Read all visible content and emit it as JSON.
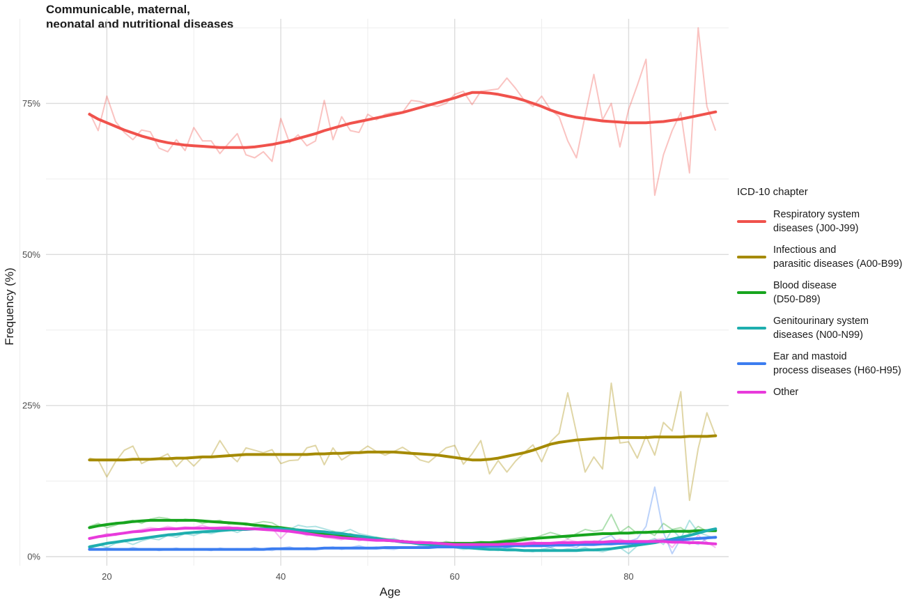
{
  "chart_data": {
    "type": "line",
    "title_lines": [
      "Communicable, maternal,",
      "neonatal and nutritional diseases"
    ],
    "xlabel": "Age",
    "ylabel": "Frequency (%)",
    "xlim": [
      13,
      91.5
    ],
    "ylim": [
      -1.5,
      89
    ],
    "x_ticks": [
      20,
      40,
      60,
      80
    ],
    "y_ticks": [
      0,
      25,
      50,
      75
    ],
    "y_tick_labels": [
      "0%",
      "25%",
      "50%",
      "75%"
    ],
    "grid": true,
    "legend_position": "right",
    "legend_title": "ICD-10 chapter",
    "x": [
      18,
      19,
      20,
      21,
      22,
      23,
      24,
      25,
      26,
      27,
      28,
      29,
      30,
      31,
      32,
      33,
      34,
      35,
      36,
      37,
      38,
      39,
      40,
      41,
      42,
      43,
      44,
      45,
      46,
      47,
      48,
      49,
      50,
      51,
      52,
      53,
      54,
      55,
      56,
      57,
      58,
      59,
      60,
      61,
      62,
      63,
      64,
      65,
      66,
      67,
      68,
      69,
      70,
      71,
      72,
      73,
      74,
      75,
      76,
      77,
      78,
      79,
      80,
      81,
      82,
      83,
      84,
      85,
      86,
      87,
      88,
      89,
      90
    ],
    "series": [
      {
        "name": "Respiratory system diseases (J00-J99)",
        "legend_lines": [
          "Respiratory system",
          "diseases (J00-J99)"
        ],
        "color": "#F0524C",
        "raw": [
          73.5,
          70.5,
          76.2,
          72.0,
          70.2,
          69.0,
          70.6,
          70.3,
          67.6,
          67.0,
          69.0,
          67.2,
          71.0,
          68.8,
          68.8,
          66.7,
          68.4,
          70.0,
          66.5,
          66.0,
          67.0,
          65.4,
          72.5,
          68.5,
          69.8,
          68.0,
          68.8,
          75.5,
          69.0,
          72.8,
          70.5,
          70.2,
          73.2,
          72.3,
          73.2,
          73.5,
          73.5,
          75.5,
          75.3,
          74.8,
          74.5,
          75.0,
          76.5,
          77.0,
          74.8,
          77.0,
          77.2,
          77.4,
          79.2,
          77.5,
          75.5,
          74.5,
          76.2,
          74.0,
          72.8,
          68.8,
          66.0,
          73.0,
          79.8,
          72.3,
          75.0,
          67.8,
          74.0,
          78.0,
          82.3,
          59.8,
          66.5,
          70.5,
          73.5,
          63.5,
          87.5,
          74.5,
          70.5
        ],
        "smooth": [
          73.2,
          72.4,
          71.8,
          71.2,
          70.6,
          70.1,
          69.6,
          69.2,
          68.8,
          68.5,
          68.3,
          68.1,
          68.0,
          67.9,
          67.8,
          67.7,
          67.7,
          67.7,
          67.7,
          67.8,
          68.0,
          68.2,
          68.5,
          68.8,
          69.2,
          69.6,
          70.0,
          70.5,
          70.9,
          71.3,
          71.7,
          72.0,
          72.3,
          72.6,
          72.9,
          73.2,
          73.5,
          73.9,
          74.3,
          74.7,
          75.1,
          75.5,
          75.9,
          76.4,
          76.8,
          76.8,
          76.7,
          76.5,
          76.2,
          75.9,
          75.5,
          75.0,
          74.5,
          73.9,
          73.4,
          73.0,
          72.7,
          72.5,
          72.3,
          72.1,
          72.0,
          71.9,
          71.8,
          71.8,
          71.8,
          71.9,
          72.0,
          72.2,
          72.4,
          72.7,
          73.0,
          73.3,
          73.6
        ]
      },
      {
        "name": "Infectious and parasitic diseases (A00-B99)",
        "legend_lines": [
          "Infectious and",
          "parasitic diseases (A00-B99)"
        ],
        "color": "#A58A00",
        "raw": [
          16.3,
          16.0,
          13.2,
          15.7,
          17.6,
          18.3,
          15.4,
          16.1,
          16.3,
          17.0,
          14.9,
          16.4,
          15.0,
          16.5,
          16.6,
          19.2,
          17.0,
          15.7,
          18.0,
          17.6,
          17.2,
          17.7,
          15.4,
          15.9,
          16.0,
          18.0,
          18.4,
          15.2,
          18.0,
          16.0,
          16.9,
          17.3,
          18.3,
          17.4,
          16.8,
          17.4,
          18.1,
          17.2,
          16.0,
          15.6,
          16.8,
          18.0,
          18.4,
          15.3,
          17.0,
          19.2,
          13.7,
          15.9,
          14.0,
          15.8,
          17.2,
          18.5,
          15.7,
          19.0,
          20.4,
          27.1,
          20.5,
          14.0,
          16.5,
          14.5,
          28.7,
          18.8,
          19.0,
          16.3,
          20.0,
          16.8,
          22.2,
          20.8,
          27.3,
          9.3,
          17.9,
          23.8,
          20.0
        ],
        "smooth": [
          16.0,
          16.0,
          16.0,
          16.0,
          16.0,
          16.1,
          16.1,
          16.1,
          16.2,
          16.2,
          16.3,
          16.3,
          16.4,
          16.5,
          16.5,
          16.6,
          16.7,
          16.8,
          16.9,
          16.9,
          16.9,
          16.9,
          16.9,
          16.9,
          16.9,
          16.9,
          17.0,
          17.0,
          17.1,
          17.1,
          17.2,
          17.2,
          17.3,
          17.3,
          17.3,
          17.3,
          17.2,
          17.1,
          17.0,
          16.9,
          16.8,
          16.6,
          16.4,
          16.2,
          16.0,
          16.0,
          16.1,
          16.3,
          16.6,
          16.9,
          17.2,
          17.6,
          18.1,
          18.6,
          18.9,
          19.1,
          19.3,
          19.4,
          19.5,
          19.6,
          19.6,
          19.7,
          19.7,
          19.7,
          19.7,
          19.8,
          19.8,
          19.8,
          19.8,
          19.9,
          19.9,
          19.9,
          20.0
        ]
      },
      {
        "name": "Blood disease (D50-D89)",
        "legend_lines": [
          "Blood disease",
          "(D50-D89)"
        ],
        "color": "#17A51E",
        "raw": [
          5.0,
          5.5,
          4.8,
          5.2,
          5.8,
          6.0,
          5.5,
          6.2,
          6.5,
          6.3,
          5.8,
          6.2,
          6.0,
          5.5,
          5.8,
          6.0,
          5.4,
          5.6,
          5.2,
          5.5,
          5.8,
          5.6,
          4.8,
          4.2,
          4.5,
          4.3,
          4.0,
          3.8,
          4.2,
          3.5,
          3.8,
          3.3,
          3.0,
          3.2,
          3.0,
          2.8,
          2.6,
          2.5,
          2.3,
          2.2,
          2.0,
          2.5,
          2.2,
          2.0,
          2.3,
          2.5,
          2.4,
          2.6,
          2.8,
          3.0,
          3.2,
          3.0,
          3.5,
          4.0,
          3.6,
          3.0,
          3.8,
          4.5,
          4.2,
          4.4,
          7.0,
          4.0,
          5.0,
          3.8,
          4.2,
          3.5,
          5.5,
          4.5,
          4.8,
          3.8,
          5.0,
          4.2,
          4.2
        ],
        "smooth": [
          4.8,
          5.1,
          5.3,
          5.5,
          5.6,
          5.8,
          5.9,
          6.0,
          6.0,
          6.0,
          6.0,
          6.0,
          6.0,
          5.9,
          5.8,
          5.7,
          5.6,
          5.5,
          5.4,
          5.2,
          5.1,
          4.9,
          4.8,
          4.6,
          4.4,
          4.2,
          4.0,
          3.8,
          3.6,
          3.4,
          3.2,
          3.1,
          2.9,
          2.8,
          2.7,
          2.6,
          2.5,
          2.4,
          2.3,
          2.3,
          2.2,
          2.2,
          2.2,
          2.2,
          2.2,
          2.3,
          2.3,
          2.4,
          2.5,
          2.6,
          2.8,
          3.0,
          3.1,
          3.2,
          3.3,
          3.4,
          3.5,
          3.6,
          3.7,
          3.8,
          3.8,
          3.9,
          3.9,
          4.0,
          4.0,
          4.1,
          4.1,
          4.2,
          4.2,
          4.2,
          4.3,
          4.3,
          4.3
        ]
      },
      {
        "name": "Genitourinary system diseases (N00-N99)",
        "legend_lines": [
          "Genitourinary system",
          "diseases (N00-N99)"
        ],
        "color": "#1EAEAE",
        "raw": [
          1.8,
          2.0,
          1.5,
          2.2,
          2.5,
          2.0,
          2.6,
          3.0,
          2.8,
          3.5,
          3.2,
          3.8,
          3.5,
          4.0,
          3.8,
          4.2,
          4.5,
          4.0,
          4.6,
          4.8,
          4.5,
          5.0,
          4.8,
          4.5,
          5.2,
          4.9,
          5.0,
          4.6,
          4.2,
          4.0,
          4.5,
          3.8,
          3.5,
          3.2,
          2.8,
          3.0,
          2.5,
          2.2,
          2.0,
          1.8,
          1.6,
          2.0,
          1.5,
          1.2,
          1.4,
          1.6,
          1.2,
          1.0,
          1.5,
          1.2,
          1.0,
          0.8,
          1.2,
          1.5,
          1.0,
          1.3,
          1.2,
          1.5,
          1.0,
          0.8,
          1.2,
          1.5,
          0.5,
          1.8,
          2.5,
          3.0,
          2.0,
          4.5,
          3.0,
          6.0,
          4.0,
          3.5,
          3.0
        ],
        "smooth": [
          1.6,
          1.9,
          2.2,
          2.4,
          2.6,
          2.8,
          3.0,
          3.2,
          3.4,
          3.6,
          3.7,
          3.9,
          4.0,
          4.1,
          4.2,
          4.3,
          4.4,
          4.5,
          4.5,
          4.6,
          4.6,
          4.6,
          4.6,
          4.5,
          4.4,
          4.3,
          4.2,
          4.1,
          3.9,
          3.8,
          3.6,
          3.4,
          3.2,
          3.0,
          2.8,
          2.6,
          2.4,
          2.3,
          2.1,
          2.0,
          1.8,
          1.7,
          1.6,
          1.5,
          1.4,
          1.3,
          1.2,
          1.2,
          1.1,
          1.1,
          1.0,
          1.0,
          1.0,
          1.0,
          1.0,
          1.0,
          1.0,
          1.1,
          1.1,
          1.2,
          1.3,
          1.5,
          1.7,
          1.9,
          2.1,
          2.3,
          2.6,
          2.9,
          3.2,
          3.5,
          3.9,
          4.3,
          4.6
        ]
      },
      {
        "name": "Ear and mastoid process diseases (H60-H95)",
        "legend_lines": [
          "Ear and mastoid",
          "process diseases (H60-H95)"
        ],
        "color": "#3C7DF0",
        "raw": [
          1.5,
          1.2,
          1.4,
          1.3,
          1.1,
          1.5,
          1.2,
          1.3,
          1.0,
          1.2,
          1.4,
          1.1,
          1.3,
          1.2,
          1.0,
          1.4,
          1.2,
          1.3,
          1.1,
          1.5,
          1.2,
          1.0,
          1.4,
          1.6,
          1.2,
          1.5,
          1.3,
          1.4,
          1.6,
          1.2,
          1.5,
          1.8,
          1.4,
          1.6,
          1.3,
          1.2,
          1.5,
          1.4,
          1.8,
          1.6,
          2.0,
          1.5,
          1.8,
          1.6,
          2.0,
          1.5,
          1.8,
          1.6,
          1.5,
          1.8,
          1.6,
          2.0,
          1.8,
          1.5,
          2.0,
          1.8,
          1.5,
          2.5,
          2.0,
          3.0,
          3.5,
          2.0,
          2.5,
          3.0,
          5.0,
          11.5,
          4.0,
          0.5,
          3.0,
          2.5,
          2.0,
          3.0,
          3.2
        ],
        "smooth": [
          1.2,
          1.2,
          1.2,
          1.2,
          1.2,
          1.2,
          1.2,
          1.2,
          1.2,
          1.2,
          1.2,
          1.2,
          1.2,
          1.2,
          1.2,
          1.2,
          1.2,
          1.2,
          1.2,
          1.2,
          1.2,
          1.3,
          1.3,
          1.3,
          1.3,
          1.3,
          1.3,
          1.4,
          1.4,
          1.4,
          1.4,
          1.4,
          1.4,
          1.4,
          1.5,
          1.5,
          1.5,
          1.5,
          1.5,
          1.5,
          1.6,
          1.6,
          1.6,
          1.6,
          1.6,
          1.7,
          1.7,
          1.7,
          1.7,
          1.8,
          1.8,
          1.8,
          1.8,
          1.9,
          1.9,
          1.9,
          2.0,
          2.0,
          2.0,
          2.1,
          2.1,
          2.2,
          2.2,
          2.3,
          2.4,
          2.5,
          2.6,
          2.7,
          2.8,
          2.9,
          3.0,
          3.1,
          3.2
        ]
      },
      {
        "name": "Other",
        "legend_lines": [
          "Other"
        ],
        "color": "#E83ADB",
        "raw": [
          3.0,
          3.3,
          3.8,
          3.5,
          4.0,
          4.2,
          4.5,
          4.8,
          4.6,
          5.0,
          4.7,
          4.9,
          4.8,
          5.2,
          4.7,
          4.9,
          5.0,
          4.6,
          4.8,
          4.5,
          4.9,
          4.7,
          3.0,
          4.5,
          4.0,
          3.5,
          3.8,
          3.2,
          3.0,
          2.8,
          3.2,
          2.6,
          3.0,
          2.8,
          2.9,
          2.5,
          2.7,
          2.2,
          2.6,
          2.4,
          2.0,
          2.2,
          2.0,
          1.8,
          2.2,
          2.4,
          1.9,
          2.1,
          2.5,
          2.0,
          2.3,
          2.6,
          1.8,
          2.0,
          2.4,
          2.8,
          2.5,
          2.0,
          2.6,
          2.5,
          2.3,
          2.9,
          2.4,
          2.6,
          2.2,
          2.8,
          3.0,
          1.5,
          3.2,
          2.0,
          3.5,
          2.4,
          1.5
        ],
        "smooth": [
          3.0,
          3.3,
          3.5,
          3.7,
          3.9,
          4.1,
          4.2,
          4.4,
          4.5,
          4.6,
          4.6,
          4.7,
          4.7,
          4.7,
          4.7,
          4.7,
          4.7,
          4.7,
          4.6,
          4.6,
          4.5,
          4.4,
          4.3,
          4.2,
          4.0,
          3.8,
          3.6,
          3.4,
          3.3,
          3.1,
          3.0,
          2.9,
          2.8,
          2.7,
          2.7,
          2.6,
          2.5,
          2.4,
          2.3,
          2.3,
          2.2,
          2.1,
          2.0,
          2.0,
          2.0,
          2.0,
          2.0,
          2.0,
          2.1,
          2.1,
          2.1,
          2.2,
          2.2,
          2.2,
          2.3,
          2.3,
          2.3,
          2.4,
          2.4,
          2.4,
          2.5,
          2.5,
          2.5,
          2.5,
          2.5,
          2.5,
          2.5,
          2.4,
          2.4,
          2.3,
          2.3,
          2.2,
          2.1
        ]
      }
    ]
  }
}
